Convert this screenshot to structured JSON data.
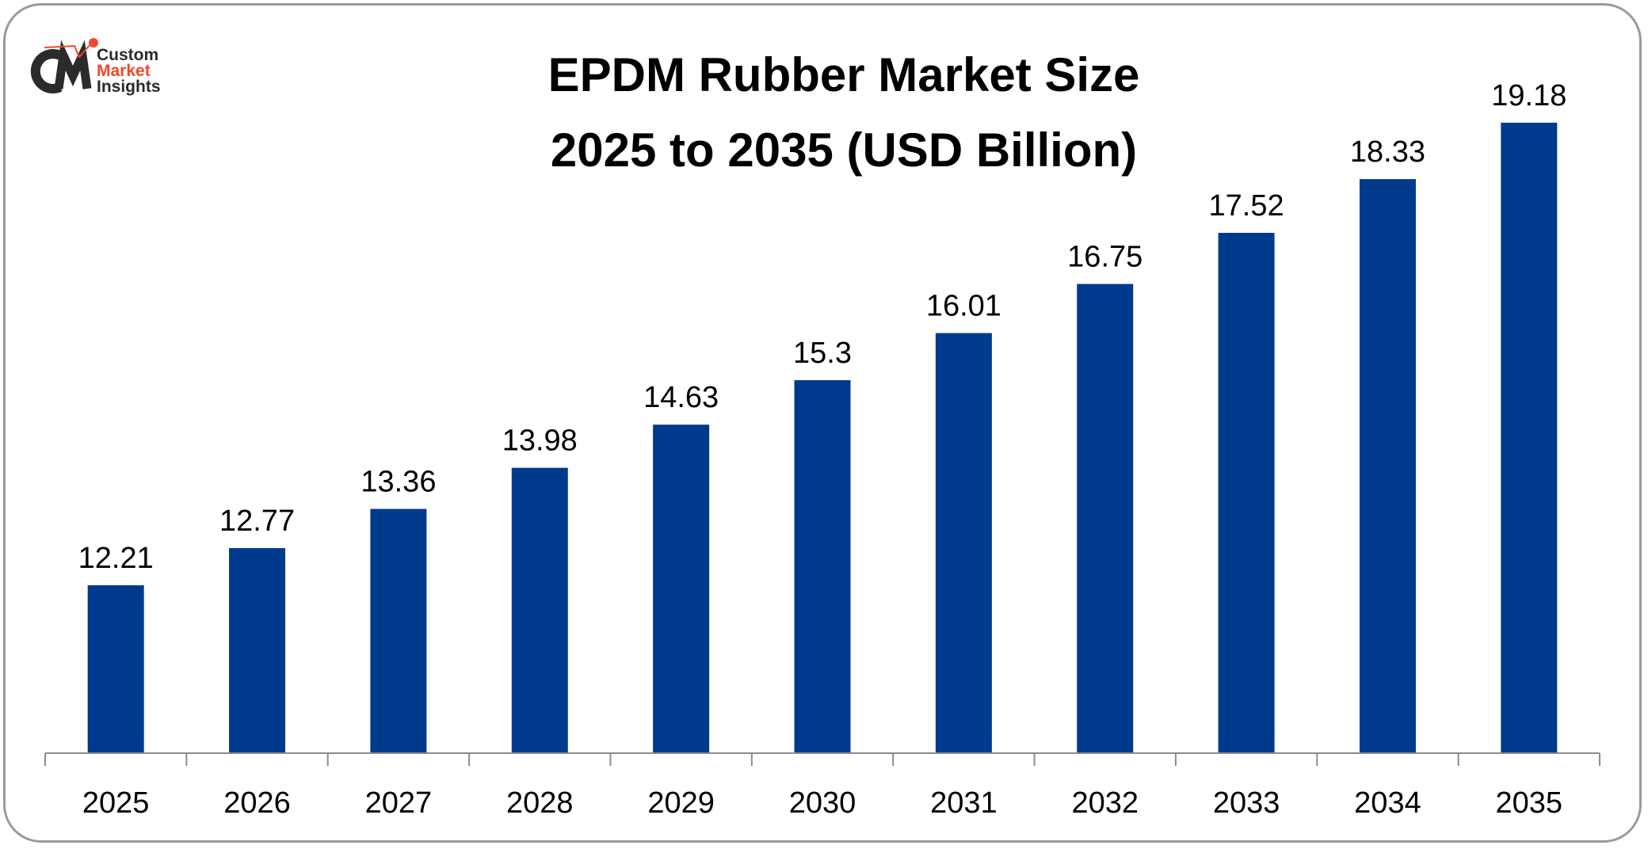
{
  "logo": {
    "line1": "Custom",
    "line2": "Market",
    "line3": "Insights"
  },
  "title_line1": "EPDM Rubber Market Size",
  "title_line2": "2025 to 2035 (USD Billion)",
  "chart_data": {
    "type": "bar",
    "title": "EPDM Rubber Market Size 2025 to 2035 (USD Billion)",
    "categories": [
      "2025",
      "2026",
      "2027",
      "2028",
      "2029",
      "2030",
      "2031",
      "2032",
      "2033",
      "2034",
      "2035"
    ],
    "values": [
      12.21,
      12.77,
      13.36,
      13.98,
      14.63,
      15.3,
      16.01,
      16.75,
      17.52,
      18.33,
      19.18
    ],
    "labels": [
      "12.21",
      "12.77",
      "13.36",
      "13.98",
      "14.63",
      "15.3",
      "16.01",
      "16.75",
      "17.52",
      "18.33",
      "19.18"
    ],
    "xlabel": "",
    "ylabel": "",
    "bar_color": "#003a8c",
    "grid": false,
    "y_axis_visible": false,
    "data_labels": true
  }
}
